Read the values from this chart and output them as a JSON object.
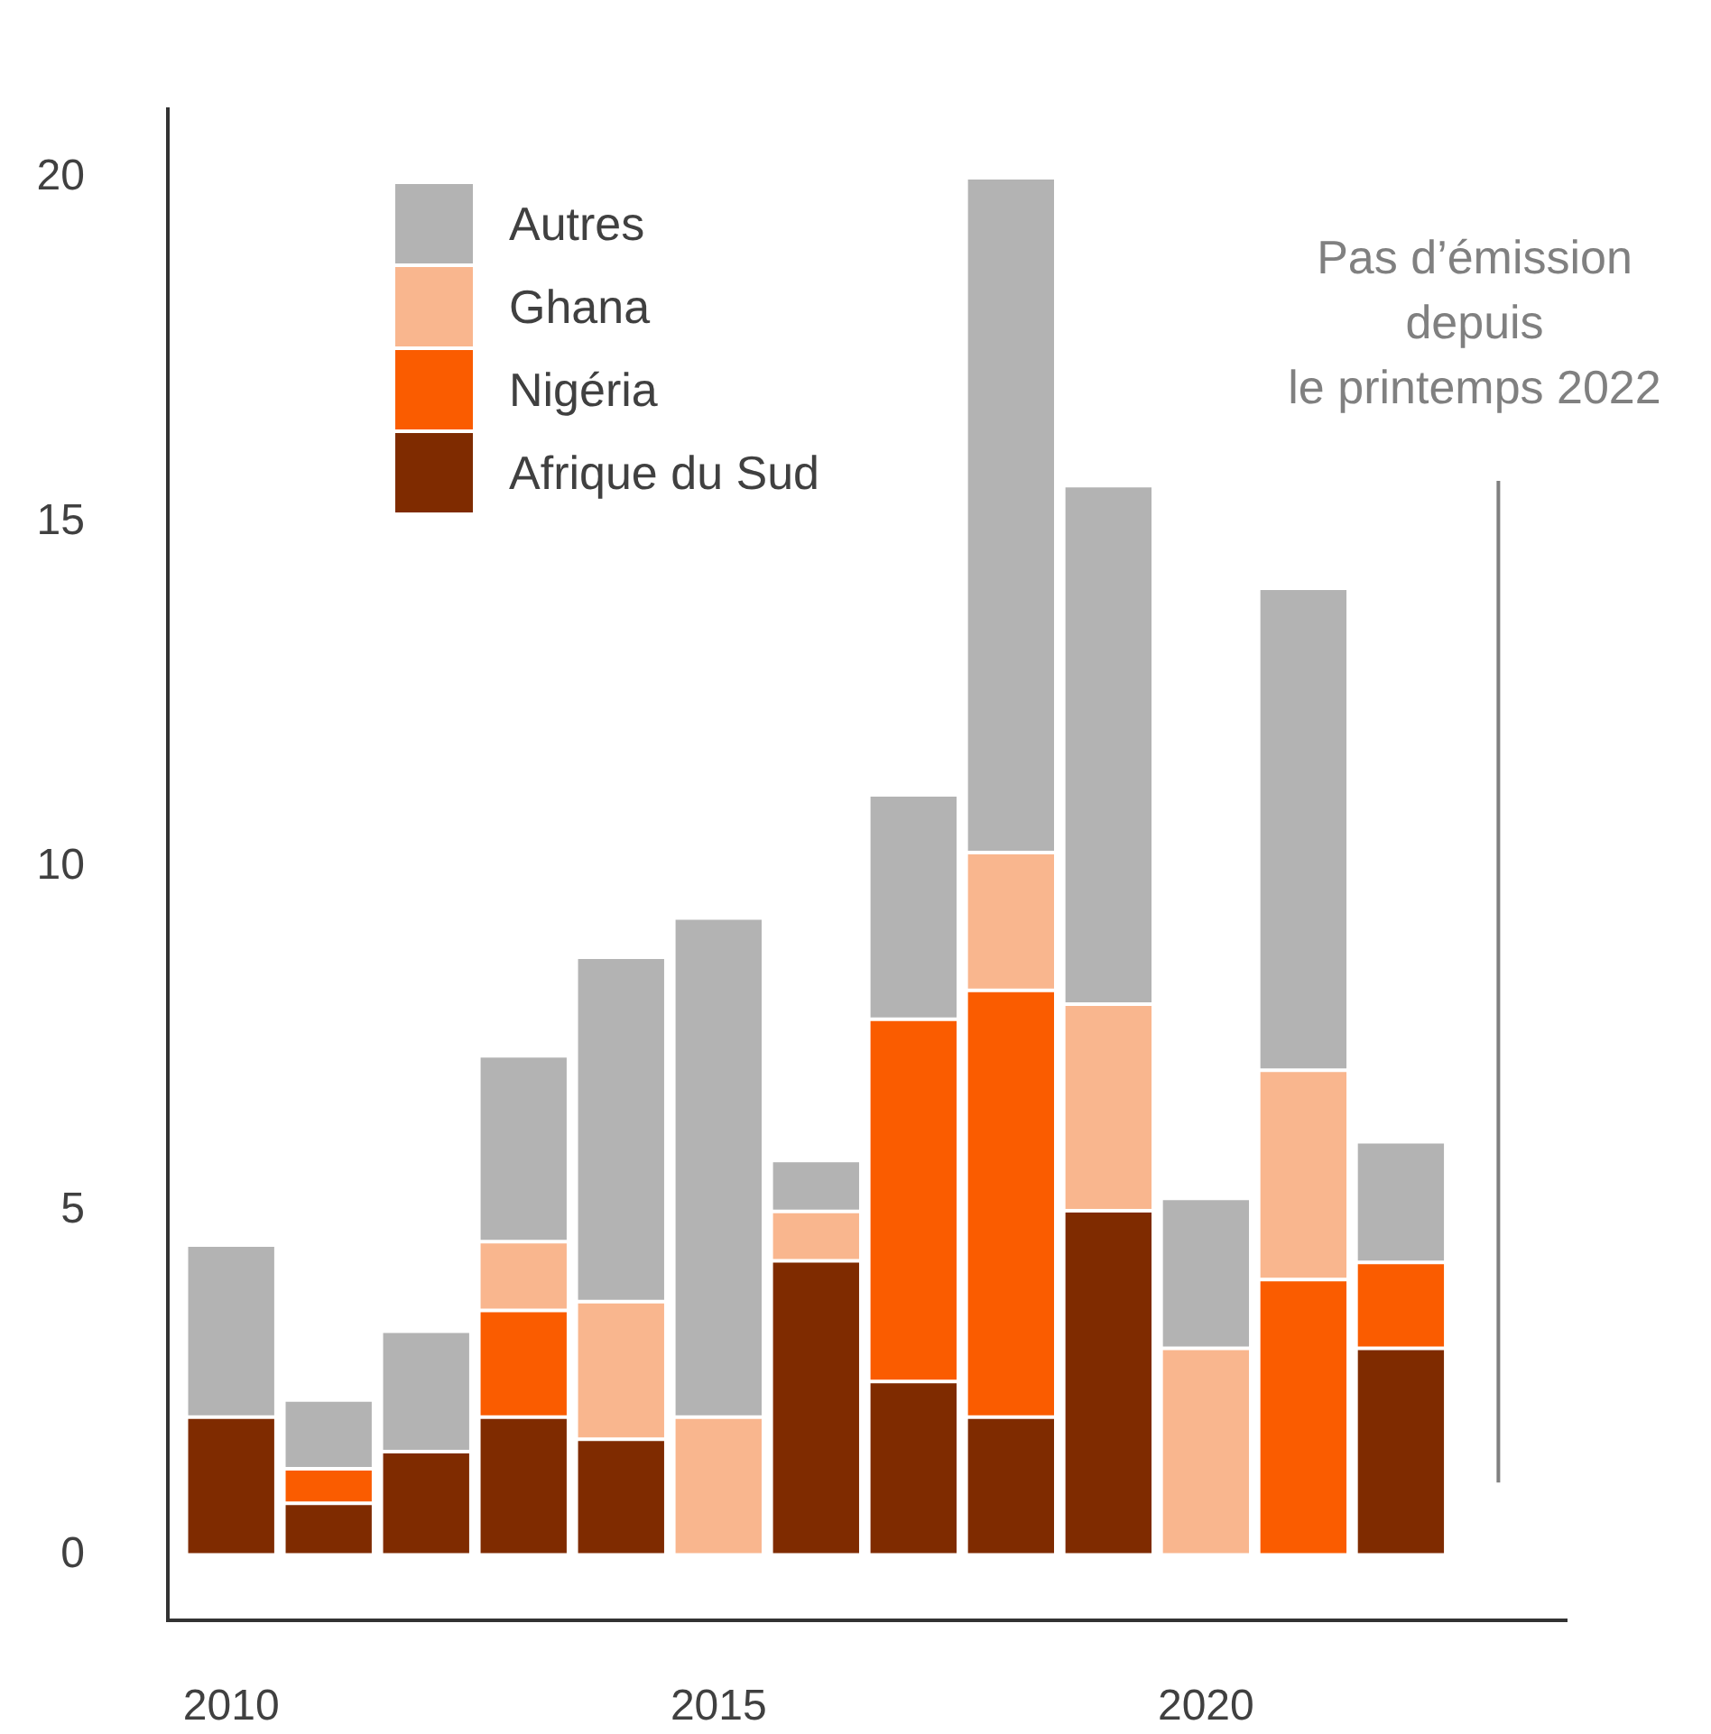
{
  "chart_data": {
    "type": "bar",
    "stacked": true,
    "x": [
      2010,
      2011,
      2012,
      2013,
      2014,
      2015,
      2016,
      2017,
      2018,
      2019,
      2020,
      2021,
      2022
    ],
    "xlim": [
      2009.35,
      2023.7
    ],
    "xticks": [
      2010,
      2015,
      2020
    ],
    "ylim": [
      -0.95,
      21
    ],
    "yticks": [
      0,
      5,
      10,
      15,
      20
    ],
    "grid": false,
    "legend": "top left",
    "series": [
      {
        "name": "Afrique du Sud",
        "color": "#7f2b00",
        "values": [
          2.0,
          0.75,
          1.5,
          2.0,
          1.68,
          0,
          4.27,
          2.52,
          2.0,
          5.0,
          0,
          0,
          3.0
        ]
      },
      {
        "name": "Nigéria",
        "color": "#fa5c00",
        "values": [
          0,
          0.5,
          0,
          1.55,
          0,
          0,
          0,
          5.26,
          6.2,
          0,
          0,
          4.0,
          1.25
        ]
      },
      {
        "name": "Ghana",
        "color": "#f9b68e",
        "values": [
          0,
          0,
          0,
          1.0,
          2.0,
          2.0,
          0.72,
          0,
          2.0,
          3.0,
          3.0,
          3.04,
          0
        ]
      },
      {
        "name": "Autres",
        "color": "#b3b3b3",
        "values": [
          2.5,
          1.0,
          1.75,
          2.7,
          5.0,
          7.25,
          0.74,
          3.26,
          9.8,
          7.53,
          2.18,
          7.0,
          1.75
        ]
      },
      {
        "type": "line",
        "x": [
          2023,
          2023
        ],
        "color": "#808080",
        "values": [
          1.05,
          15.6
        ]
      }
    ],
    "annotations": [
      "Pas d’émission\ndepuis\nle printemps 2022"
    ]
  }
}
